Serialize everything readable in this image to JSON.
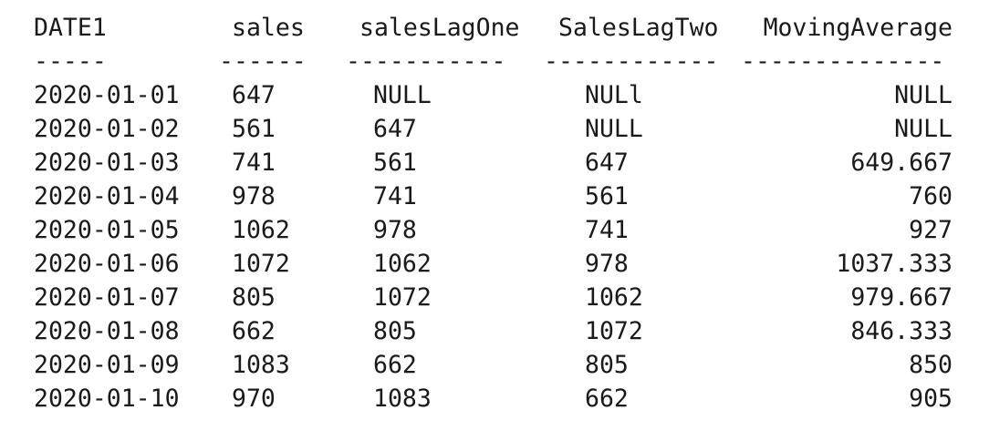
{
  "headers": {
    "date": "DATE1",
    "sales": "sales",
    "lag_one": "salesLagOne",
    "lag_two": "SalesLagTwo",
    "moving_avg": "MovingAverage"
  },
  "separators": {
    "date": "-----",
    "sales": "------",
    "lag_one": "-----------",
    "lag_two": "------------",
    "moving_avg": "--------------"
  },
  "rows": [
    {
      "date": "2020-01-01",
      "sales": "647",
      "lag_one": "NULL",
      "lag_two": "NULl",
      "moving_avg": "NULL"
    },
    {
      "date": "2020-01-02",
      "sales": "561",
      "lag_one": "647",
      "lag_two": "NULL",
      "moving_avg": "NULL"
    },
    {
      "date": "2020-01-03",
      "sales": "741",
      "lag_one": "561",
      "lag_two": "647",
      "moving_avg": "649.667"
    },
    {
      "date": "2020-01-04",
      "sales": "978",
      "lag_one": "741",
      "lag_two": "561",
      "moving_avg": "760"
    },
    {
      "date": "2020-01-05",
      "sales": "1062",
      "lag_one": "978",
      "lag_two": "741",
      "moving_avg": "927"
    },
    {
      "date": "2020-01-06",
      "sales": "1072",
      "lag_one": "1062",
      "lag_two": "978",
      "moving_avg": "1037.333"
    },
    {
      "date": "2020-01-07",
      "sales": "805",
      "lag_one": "1072",
      "lag_two": "1062",
      "moving_avg": "979.667"
    },
    {
      "date": "2020-01-08",
      "sales": "662",
      "lag_one": "805",
      "lag_two": "1072",
      "moving_avg": "846.333"
    },
    {
      "date": "2020-01-09",
      "sales": "1083",
      "lag_one": "662",
      "lag_two": "805",
      "moving_avg": "850"
    },
    {
      "date": "2020-01-10",
      "sales": "970",
      "lag_one": "1083",
      "lag_two": "662",
      "moving_avg": "905"
    }
  ]
}
